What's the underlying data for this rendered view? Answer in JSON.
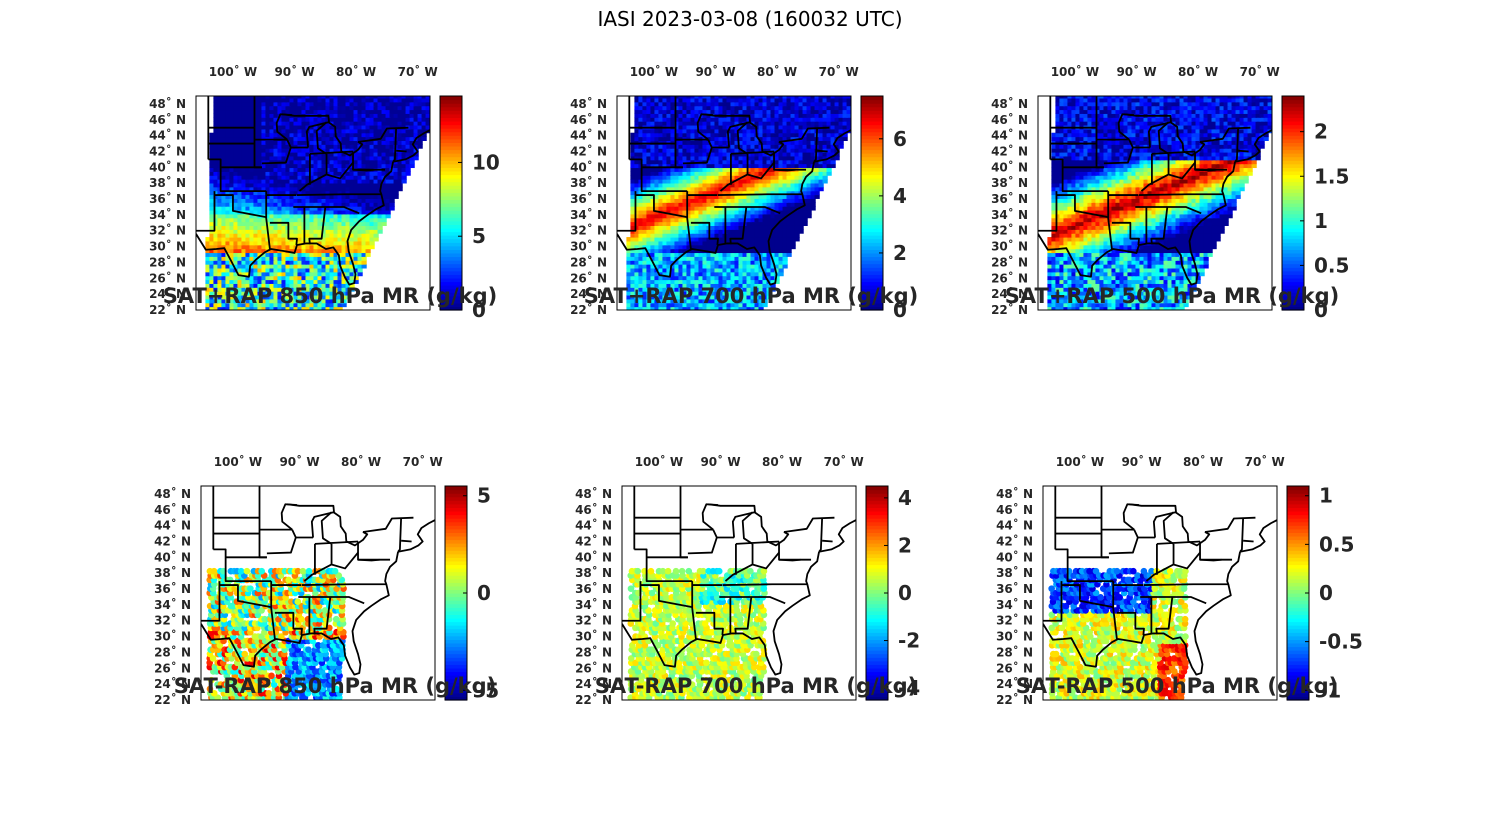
{
  "figure": {
    "title": "IASI 2023-03-08 (160032 UTC)",
    "lon_ticks": [
      "100˚ W",
      "90˚ W",
      "80˚ W",
      "70˚ W"
    ],
    "lat_ticks": [
      "48˚ N",
      "46˚ N",
      "44˚ N",
      "42˚ N",
      "40˚ N",
      "38˚ N",
      "36˚ N",
      "34˚ N",
      "32˚ N",
      "30˚ N",
      "28˚ N",
      "26˚ N",
      "24˚ N",
      "22˚ N"
    ],
    "colormap": "jet",
    "accent_colors": [
      "#00008f",
      "#0000ff",
      "#00ffff",
      "#ffff00",
      "#ff0000",
      "#800000"
    ]
  },
  "chart_data": [
    {
      "type": "heatmap",
      "title": "SAT+RAP 850 hPa MR (g/kg)",
      "lon_range": [
        -106,
        -68
      ],
      "lat_range": [
        22,
        49
      ],
      "colorbar": {
        "range": [
          0,
          14.5
        ],
        "ticks": [
          0,
          5,
          10
        ],
        "tick_labels": [
          "0",
          "5",
          "10"
        ]
      },
      "field": "high moisture (10-14) over Gulf coast/Texas, low (0-2) over Great Lakes and northeast"
    },
    {
      "type": "heatmap",
      "title": "SAT+RAP 700 hPa MR (g/kg)",
      "lon_range": [
        -106,
        -68
      ],
      "lat_range": [
        22,
        49
      ],
      "colorbar": {
        "range": [
          0,
          7.5
        ],
        "ticks": [
          0,
          2,
          4,
          6
        ],
        "tick_labels": [
          "0",
          "2",
          "4",
          "6"
        ]
      },
      "field": "moist band (6-7) from central Texas toward Tennessee valley, dry north"
    },
    {
      "type": "heatmap",
      "title": "SAT+RAP 500 hPa MR (g/kg)",
      "lon_range": [
        -106,
        -68
      ],
      "lat_range": [
        22,
        49
      ],
      "colorbar": {
        "range": [
          0,
          2.4
        ],
        "ticks": [
          0,
          0.5,
          1,
          1.5,
          2
        ],
        "tick_labels": [
          "0",
          "0.5",
          "1",
          "1.5",
          "2"
        ]
      },
      "field": "moist band (2-2.4) from Texas to Appalachians, dry (0-0.5) north"
    },
    {
      "type": "scatter",
      "title": "SAT-RAP 850 hPa MR (g/kg)",
      "lon_range": [
        -106,
        -68
      ],
      "lat_range": [
        22,
        49
      ],
      "colorbar": {
        "range": [
          -5.5,
          5.5
        ],
        "ticks": [
          -5,
          0,
          5
        ],
        "tick_labels": [
          "-5",
          "0",
          "5"
        ]
      },
      "field": "differences -5 to +5 over southern US and Gulf"
    },
    {
      "type": "scatter",
      "title": "SAT-RAP 700 hPa MR (g/kg)",
      "lon_range": [
        -106,
        -68
      ],
      "lat_range": [
        22,
        49
      ],
      "colorbar": {
        "range": [
          -4.5,
          4.5
        ],
        "ticks": [
          -4,
          -2,
          0,
          2,
          4
        ],
        "tick_labels": [
          "-4",
          "-2",
          "0",
          "2",
          "4"
        ]
      },
      "field": "differences mostly near 0 to +1 over Gulf, few negative"
    },
    {
      "type": "scatter",
      "title": "SAT-RAP 500 hPa MR (g/kg)",
      "lon_range": [
        -106,
        -68
      ],
      "lat_range": [
        22,
        49
      ],
      "colorbar": {
        "range": [
          -1.1,
          1.1
        ],
        "ticks": [
          -1,
          -0.5,
          0,
          0.5,
          1
        ],
        "tick_labels": [
          "-1",
          "-0.5",
          "0",
          "0.5",
          "1"
        ]
      },
      "field": "negative (-1) over central plains, positive (+1) near Florida/Gulf"
    }
  ]
}
